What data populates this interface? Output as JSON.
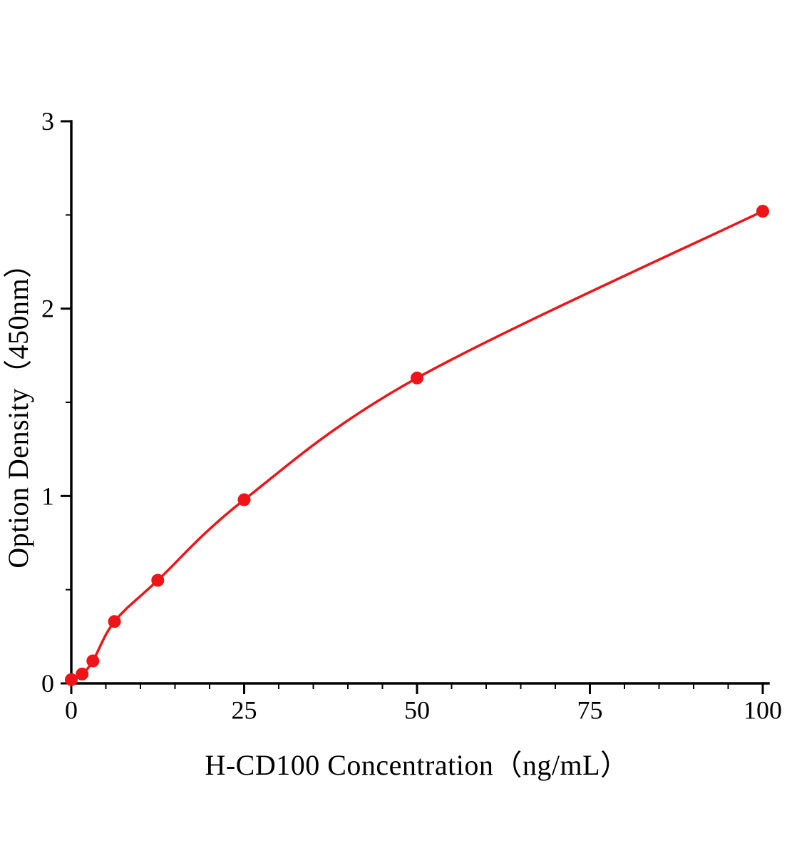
{
  "figure": {
    "title": ""
  },
  "chart_data": {
    "type": "line",
    "x": [
      0,
      1.5625,
      3.125,
      6.25,
      12.5,
      25,
      50,
      100
    ],
    "y": [
      0.02,
      0.05,
      0.12,
      0.33,
      0.55,
      0.98,
      1.63,
      2.52
    ],
    "title": "",
    "xlabel": "H-CD100 Concentration（ng/mL）",
    "ylabel": "Option Density（450nm）",
    "xlim": [
      0,
      100
    ],
    "ylim": [
      0,
      3
    ],
    "x_major_ticks": [
      0,
      25,
      50,
      75,
      100
    ],
    "x_minor_step": 5,
    "y_major_ticks": [
      0,
      1,
      2,
      3
    ],
    "y_minor_step": 0.5,
    "grid": false,
    "legend": null,
    "line_color": "#ee1417",
    "marker_color": "#ee1417",
    "axis_color": "#000000",
    "marker_radius": 9
  }
}
